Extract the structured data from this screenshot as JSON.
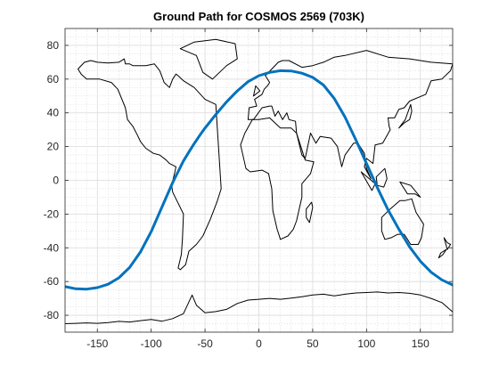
{
  "chart_data": {
    "type": "line",
    "title": "Ground Path for COSMOS 2569 (703K)",
    "xlabel": "",
    "ylabel": "",
    "xlim": [
      -180,
      180
    ],
    "ylim": [
      -90,
      90
    ],
    "xticks": [
      -150,
      -100,
      -50,
      0,
      50,
      100,
      150
    ],
    "yticks": [
      -80,
      -60,
      -40,
      -20,
      0,
      20,
      40,
      60,
      80
    ],
    "xtick_labels": [
      "-150",
      "-100",
      "-50",
      "0",
      "50",
      "100",
      "150"
    ],
    "ytick_labels": [
      "-80",
      "-60",
      "-40",
      "-20",
      "0",
      "20",
      "40",
      "60",
      "80"
    ],
    "grid": true,
    "minor_grid": true,
    "legend": "none",
    "series": [
      {
        "type": "line",
        "color": "#0072BD",
        "line_width": 3,
        "description": "satellite ground track",
        "x": [
          -180,
          -170,
          -160,
          -150,
          -140,
          -130,
          -120,
          -110,
          -100,
          -90,
          -80,
          -70,
          -65,
          -60,
          -55,
          -50,
          -40,
          -30,
          -20,
          -10,
          0,
          10,
          20,
          30,
          40,
          50,
          60,
          70,
          80,
          90,
          100,
          110,
          115,
          120,
          130,
          140,
          150,
          160,
          170,
          180
        ],
        "y": [
          -63,
          -64.3,
          -64.5,
          -63.6,
          -61.6,
          -57.8,
          -51.6,
          -42.5,
          -30.4,
          -15.8,
          -1.3,
          11.5,
          16.8,
          21.8,
          26.5,
          31,
          39,
          46.5,
          53,
          58.5,
          62,
          64,
          65,
          64.8,
          63.5,
          61,
          56.5,
          48.5,
          37.5,
          24,
          10,
          -4.2,
          -11,
          -17.5,
          -29,
          -39.5,
          -48,
          -54.5,
          -59,
          -62
        ]
      },
      {
        "type": "line",
        "color": "#000000",
        "line_width": 1,
        "description": "Antarctica coastline",
        "x": [
          -180,
          -170,
          -160,
          -150,
          -140,
          -130,
          -120,
          -110,
          -100,
          -90,
          -80,
          -70,
          -62,
          -58,
          -50,
          -40,
          -30,
          -20,
          -10,
          0,
          10,
          20,
          30,
          40,
          50,
          60,
          70,
          80,
          90,
          100,
          110,
          120,
          130,
          140,
          150,
          160,
          170,
          180
        ],
        "y": [
          -85,
          -84.8,
          -84.5,
          -84.8,
          -84.3,
          -83.6,
          -84,
          -83.2,
          -82.5,
          -83.5,
          -82,
          -79,
          -68,
          -74,
          -78.5,
          -77.8,
          -76.5,
          -73,
          -71,
          -70.5,
          -70,
          -70.5,
          -69.8,
          -69,
          -68,
          -67.5,
          -68.5,
          -67.5,
          -66.8,
          -66.5,
          -66.2,
          -66.8,
          -66.5,
          -67,
          -68,
          -70,
          -72.5,
          -78
        ]
      },
      {
        "type": "line",
        "color": "#000000",
        "line_width": 1,
        "description": "North and South America coastline",
        "x": [
          -168,
          -162,
          -156,
          -150,
          -140,
          -130,
          -125,
          -124,
          -120,
          -117,
          -110,
          -105,
          -97,
          -92,
          -88,
          -83,
          -80,
          -77,
          -75,
          -70,
          -60,
          -50,
          -40,
          -35,
          -39,
          -45,
          -52,
          -58,
          -65,
          -68,
          -73,
          -75,
          -72,
          -71,
          -70,
          -80,
          -81,
          -78,
          -77,
          -83,
          -86,
          -92,
          -98,
          -105,
          -110,
          -113,
          -117,
          -122,
          -124,
          -131,
          -137,
          -148,
          -160,
          -165,
          -168
        ],
        "y": [
          66,
          70,
          71,
          70,
          69.5,
          70,
          72,
          69,
          69,
          68,
          68,
          68,
          69,
          65,
          58,
          55,
          60,
          63,
          62,
          59,
          55,
          48,
          45,
          -5,
          -13,
          -23,
          -33,
          -38,
          -42,
          -50,
          -53,
          -52,
          -44,
          -35,
          -20,
          -7,
          -3,
          5,
          8,
          10,
          12,
          15,
          16,
          19,
          23,
          27,
          32,
          36,
          43,
          54,
          58,
          60,
          60,
          63,
          66
        ]
      },
      {
        "type": "line",
        "color": "#000000",
        "line_width": 1,
        "description": "Greenland coastline",
        "x": [
          -73,
          -60,
          -40,
          -22,
          -20,
          -30,
          -43,
          -52,
          -58,
          -73
        ],
        "y": [
          78,
          82,
          83.5,
          81,
          72,
          68,
          60,
          64,
          74,
          78
        ]
      },
      {
        "type": "line",
        "color": "#000000",
        "line_width": 1,
        "description": "Eurasia coastline",
        "x": [
          -10,
          -9,
          -2,
          -4,
          3,
          5,
          8,
          10,
          6,
          12,
          18,
          22,
          28,
          40,
          50,
          60,
          70,
          80,
          100,
          120,
          140,
          160,
          180,
          178,
          170,
          160,
          155,
          140,
          135,
          130,
          126,
          120,
          121,
          122,
          115,
          108,
          106,
          100,
          98,
          104,
          100,
          98,
          92,
          88,
          80,
          77,
          73,
          67,
          57,
          53,
          48,
          43,
          40,
          35,
          34,
          28,
          26,
          22,
          18,
          15,
          12,
          10,
          3,
          -5,
          -10
        ],
        "y": [
          36,
          43,
          44,
          48,
          51,
          54,
          56,
          58,
          62,
          66,
          70,
          71,
          71,
          67,
          68,
          70,
          73,
          74,
          77,
          73,
          72,
          70,
          69,
          65,
          60,
          59,
          51,
          47,
          43,
          42,
          37,
          37,
          32,
          30,
          22,
          21,
          10,
          13,
          8,
          1,
          7,
          16,
          22,
          22,
          15,
          8,
          20,
          25,
          26,
          22,
          28,
          13,
          15,
          28,
          35,
          36,
          40,
          36,
          41,
          38,
          44,
          44,
          43,
          36,
          36
        ]
      },
      {
        "type": "line",
        "color": "#000000",
        "line_width": 1,
        "description": "Africa coastline",
        "x": [
          -17,
          -13,
          -6,
          0,
          10,
          20,
          30,
          35,
          43,
          51,
          48,
          40,
          40,
          35,
          32,
          27,
          20,
          17,
          13,
          12,
          9,
          3,
          -8,
          -12,
          -17
        ],
        "y": [
          21,
          28,
          36,
          36,
          37,
          31,
          31,
          28,
          12,
          11,
          4,
          -2,
          -10,
          -24,
          -29,
          -33,
          -35,
          -29,
          -18,
          -5,
          4,
          6,
          5,
          7,
          21
        ]
      },
      {
        "type": "line",
        "color": "#000000",
        "line_width": 1,
        "description": "Madagascar coastline",
        "x": [
          44,
          49,
          50,
          47,
          44,
          44
        ],
        "y": [
          -17,
          -13,
          -16,
          -25,
          -22,
          -17
        ]
      },
      {
        "type": "line",
        "color": "#000000",
        "line_width": 1,
        "description": "Australia coastline",
        "x": [
          114,
          122,
          131,
          136,
          142,
          146,
          153,
          151,
          148,
          141,
          138,
          135,
          129,
          123,
          117,
          114,
          114
        ],
        "y": [
          -22,
          -17,
          -12,
          -12,
          -11,
          -19,
          -26,
          -34,
          -38,
          -38,
          -35,
          -32,
          -32,
          -34,
          -35,
          -30,
          -22
        ]
      },
      {
        "type": "line",
        "color": "#000000",
        "line_width": 1,
        "description": "New Zealand coastline",
        "x": [
          172,
          175,
          178,
          175,
          172
        ],
        "y": [
          -34,
          -37,
          -38,
          -41,
          -34
        ]
      },
      {
        "type": "line",
        "color": "#000000",
        "line_width": 1,
        "description": "South Island coastline",
        "x": [
          174,
          171,
          167,
          169,
          174
        ],
        "y": [
          -41,
          -44,
          -46,
          -43,
          -41
        ]
      },
      {
        "type": "line",
        "color": "#000000",
        "line_width": 1,
        "description": "British Isles coastline",
        "x": [
          -5,
          -3,
          1,
          -3,
          -5,
          -5
        ],
        "y": [
          50,
          56,
          53,
          51,
          50,
          50
        ]
      },
      {
        "type": "line",
        "color": "#000000",
        "line_width": 1,
        "description": "Japan coastline",
        "x": [
          130,
          135,
          140,
          142,
          141,
          136,
          130
        ],
        "y": [
          31,
          34,
          36,
          41,
          45,
          36,
          31
        ]
      },
      {
        "type": "line",
        "color": "#000000",
        "line_width": 1,
        "description": "Sumatra-Borneo-New Guinea islands",
        "x": [
          95,
          105,
          108,
          95
        ],
        "y": [
          5,
          -6,
          -2,
          5
        ]
      },
      {
        "type": "line",
        "color": "#000000",
        "line_width": 1,
        "description": "New Guinea coastline",
        "x": [
          131,
          141,
          150,
          145,
          138,
          131
        ],
        "y": [
          -1,
          -3,
          -10,
          -8,
          -8,
          -1
        ]
      },
      {
        "type": "line",
        "color": "#000000",
        "line_width": 1,
        "description": "Borneo coastline",
        "x": [
          109,
          117,
          119,
          116,
          110,
          109
        ],
        "y": [
          2,
          7,
          1,
          -4,
          -3,
          2
        ]
      }
    ]
  }
}
